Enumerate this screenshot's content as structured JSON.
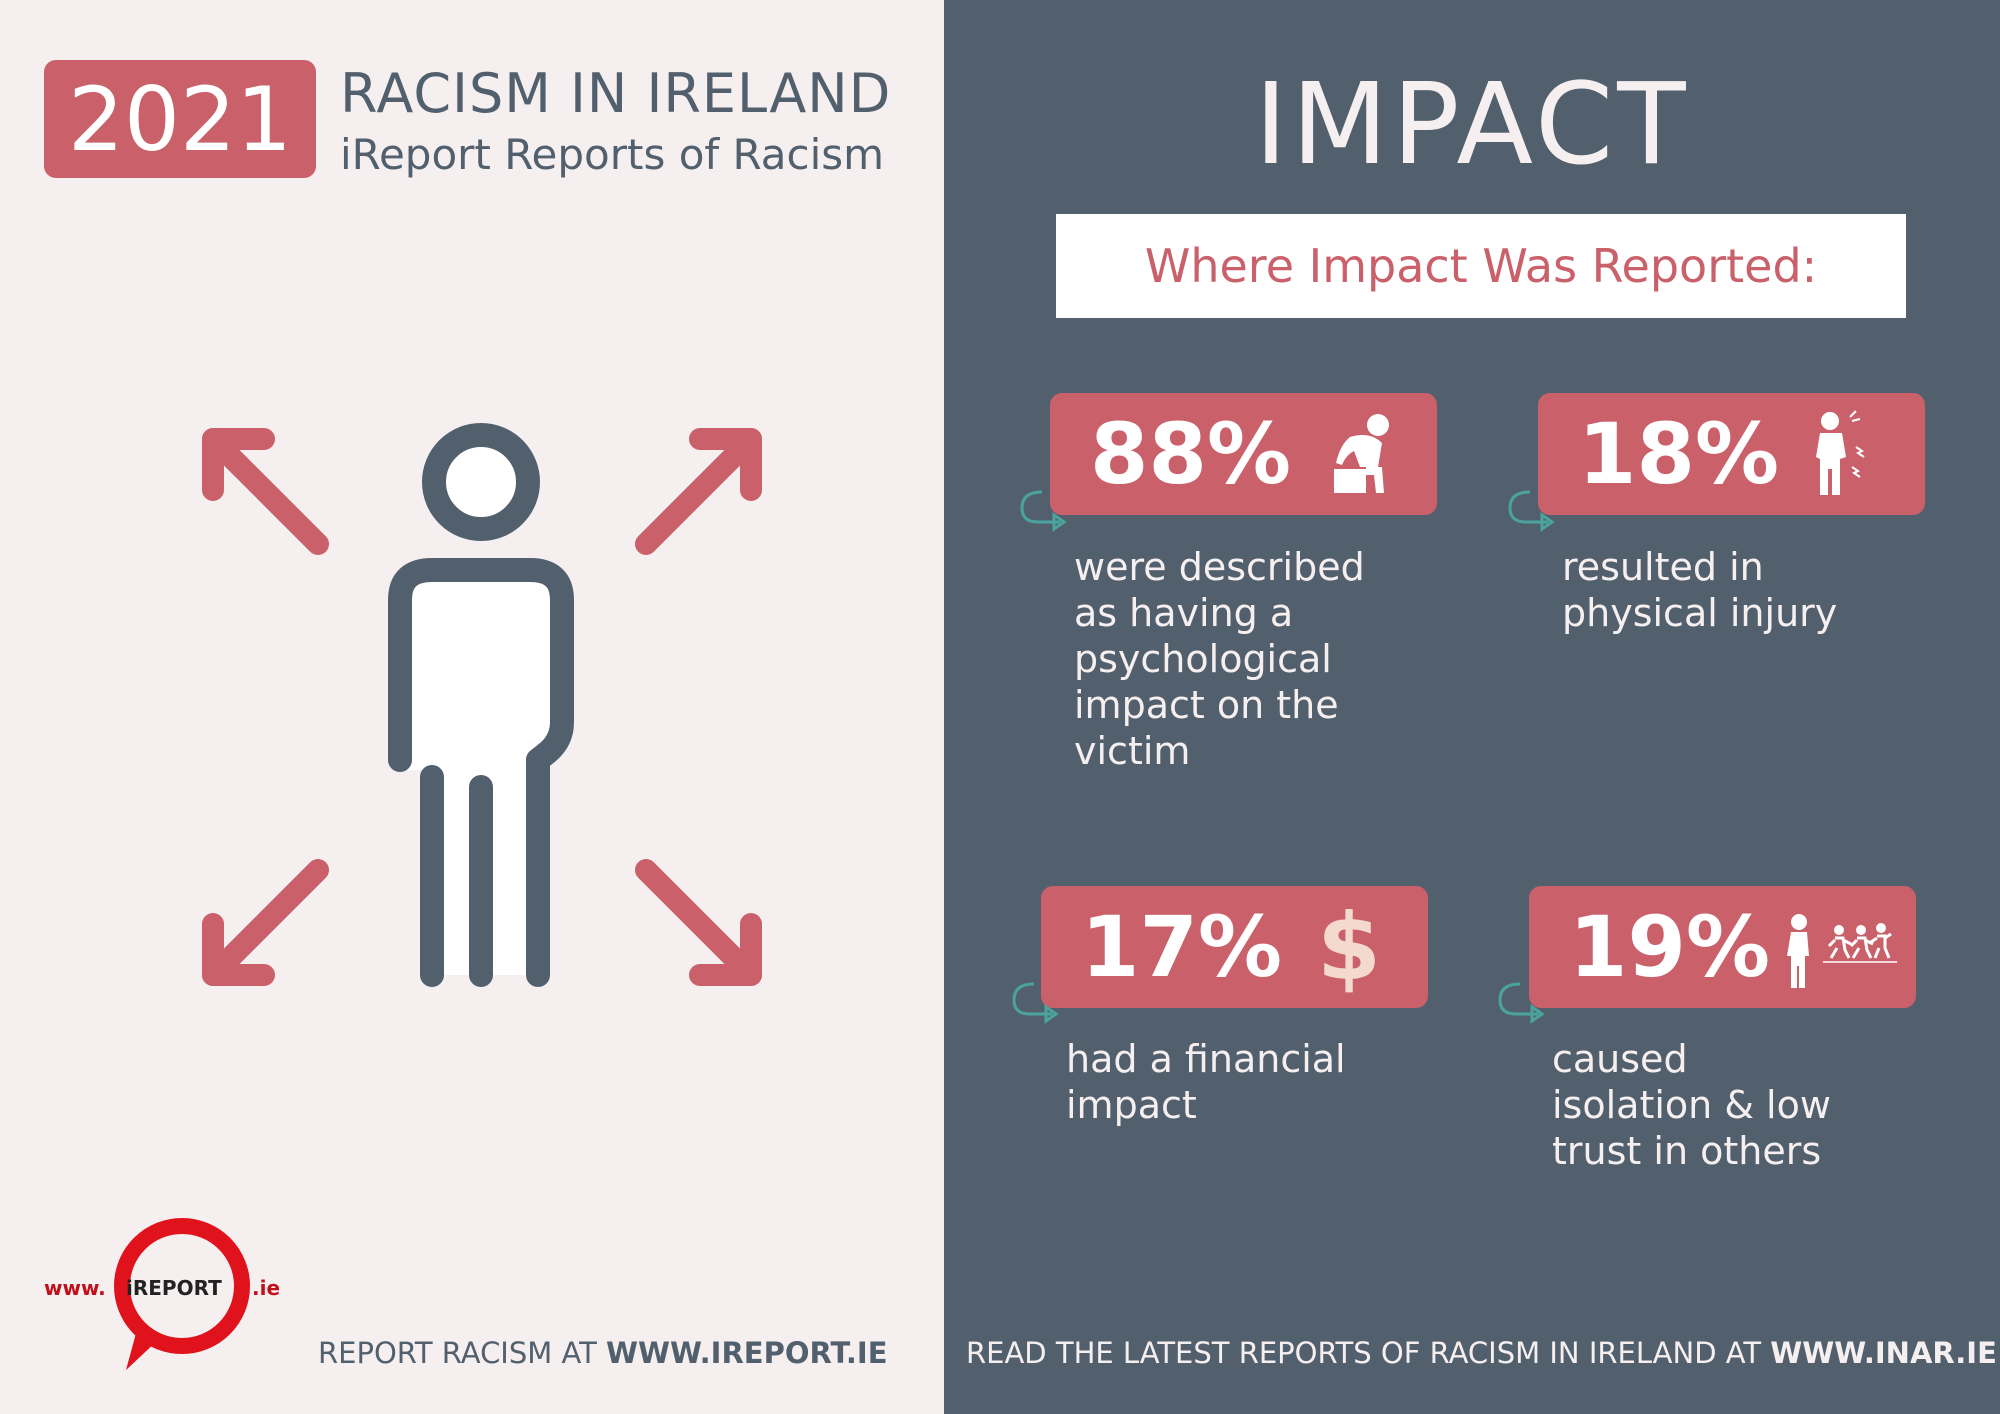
{
  "header": {
    "year": "2021",
    "title": "RACISM IN IRELAND",
    "subtitle": "iReport Reports of Racism"
  },
  "logo": {
    "prefix": "www.",
    "brand": "iREPORT",
    "suffix": ".ie"
  },
  "footer_left": {
    "text": "REPORT RACISM AT ",
    "link": "WWW.IREPORT.IE"
  },
  "impact": {
    "heading": "IMPACT",
    "subheading": "Where Impact Was Reported:",
    "stats": [
      {
        "percent": "88%",
        "icon": "distressed-person-icon",
        "text": " were described\nas having a\npsychological\nimpact on the\nvictim",
        "percent_value": 88
      },
      {
        "percent": "18%",
        "icon": "injured-person-icon",
        "text": "resulted in\nphysical injury",
        "percent_value": 18
      },
      {
        "percent": "17%",
        "icon": "dollar-icon",
        "text": " had a financial\nimpact",
        "percent_value": 17
      },
      {
        "percent": "19%",
        "icon": "isolated-person-icon",
        "text": " caused\nisolation & low\ntrust in others",
        "percent_value": 19
      }
    ]
  },
  "footer_right": {
    "text": "READ THE LATEST REPORTS OF RACISM IN IRELAND AT ",
    "link": "WWW.INAR.IE"
  },
  "colors": {
    "accent": "#c9606a",
    "slate": "#52606e",
    "light": "#f6eff0",
    "teal": "#4aa39d"
  }
}
